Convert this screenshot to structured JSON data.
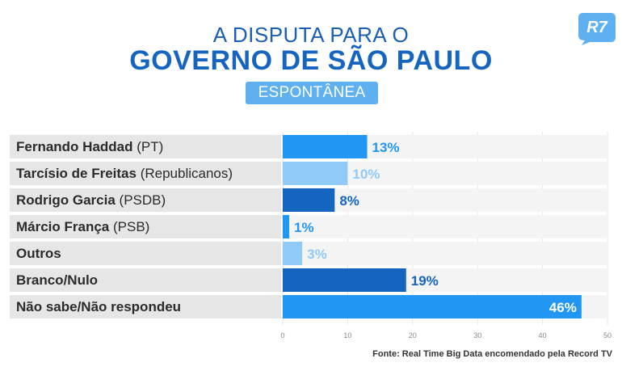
{
  "header": {
    "title_line1": "A DISPUTA PARA O",
    "title_line2": "GOVERNO DE SÃO PAULO",
    "subtitle": "ESPONTÂNEA"
  },
  "logo": {
    "text": "R7",
    "color": "#5fb0f0"
  },
  "source": "Fonte: Real Time Big Data encomendado pela Record TV",
  "chart_data": {
    "type": "bar",
    "orientation": "horizontal",
    "categories": [
      {
        "name": "Fernando Haddad",
        "party": " (PT)"
      },
      {
        "name": "Tarcísio de Freitas",
        "party": " (Republicanos)"
      },
      {
        "name": "Rodrigo Garcia",
        "party": " (PSDB)"
      },
      {
        "name": "Márcio França",
        "party": " (PSB)"
      },
      {
        "name": "Outros",
        "party": ""
      },
      {
        "name": "Branco/Nulo",
        "party": ""
      },
      {
        "name": "Não sabe/Não respondeu",
        "party": ""
      }
    ],
    "values": [
      13,
      10,
      8,
      1,
      3,
      19,
      46
    ],
    "value_labels": [
      "13%",
      "10%",
      "8%",
      "1%",
      "3%",
      "19%",
      "46%"
    ],
    "bar_colors": [
      "#2196f3",
      "#90caf9",
      "#1565c0",
      "#2196f3",
      "#90caf9",
      "#1565c0",
      "#2196f3"
    ],
    "xlim": [
      0,
      50
    ],
    "xticks": [
      0,
      10,
      20,
      30,
      40,
      50
    ],
    "grid": true
  }
}
